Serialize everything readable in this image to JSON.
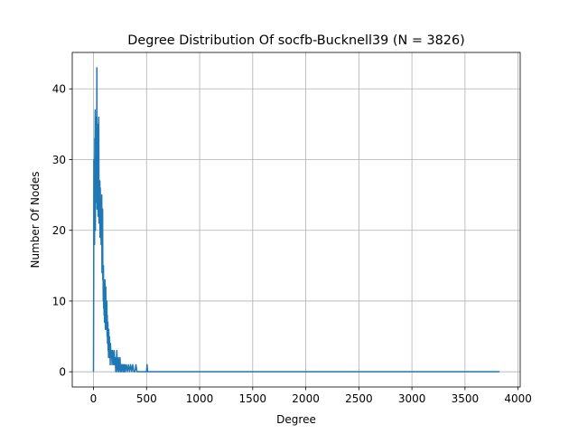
{
  "chart_data": {
    "type": "line",
    "title": "Degree Distribution Of socfb-Bucknell39 (N = 3826)",
    "xlabel": "Degree",
    "ylabel": "Number Of Nodes",
    "xlim": [
      -200,
      4020
    ],
    "ylim": [
      -2.15,
      45.15
    ],
    "xticks": [
      0,
      500,
      1000,
      1500,
      2000,
      2500,
      3000,
      3500,
      4000
    ],
    "yticks": [
      0,
      10,
      20,
      30,
      40
    ],
    "grid": true,
    "line_color": "#1f77b4",
    "series": [
      {
        "x": [
          0,
          2,
          4,
          6,
          8,
          10,
          12,
          14,
          16,
          18,
          20,
          22,
          24,
          26,
          28,
          30,
          32,
          34,
          36,
          38,
          40,
          42,
          44,
          46,
          48,
          50,
          52,
          54,
          56,
          58,
          60,
          62,
          64,
          66,
          68,
          70,
          72,
          74,
          76,
          78,
          80,
          82,
          84,
          86,
          88,
          90,
          92,
          94,
          96,
          98,
          100,
          102,
          104,
          106,
          108,
          110,
          112,
          114,
          116,
          118,
          120,
          122,
          124,
          126,
          128,
          130,
          132,
          134,
          136,
          138,
          140,
          142,
          144,
          146,
          148,
          150,
          152,
          154,
          156,
          158,
          160,
          165,
          170,
          175,
          180,
          185,
          190,
          195,
          200,
          205,
          210,
          215,
          220,
          225,
          230,
          235,
          240,
          245,
          250,
          255,
          260,
          265,
          270,
          275,
          280,
          285,
          290,
          295,
          300,
          310,
          320,
          330,
          340,
          350,
          360,
          370,
          380,
          390,
          400,
          410,
          420,
          440,
          460,
          480,
          500,
          505,
          510,
          600,
          800,
          1000,
          1500,
          2000,
          2500,
          3000,
          3500,
          3826
        ],
        "y": [
          0,
          12,
          30,
          22,
          27,
          18,
          33,
          25,
          37,
          20,
          35,
          28,
          32,
          24,
          36,
          27,
          43,
          23,
          31,
          25,
          29,
          35,
          22,
          27,
          24,
          36,
          21,
          27,
          25,
          22,
          27,
          19,
          26,
          23,
          21,
          24,
          18,
          22,
          20,
          25,
          14,
          20,
          17,
          23,
          13,
          15,
          10,
          15,
          9,
          12,
          8,
          11,
          7,
          9,
          13,
          9,
          6,
          10,
          12,
          8,
          9,
          6,
          7,
          10,
          5,
          8,
          4,
          6,
          7,
          3,
          5,
          2,
          6,
          4,
          3,
          5,
          4,
          2,
          3,
          1,
          4,
          2,
          3,
          1,
          3,
          2,
          1,
          3,
          1,
          2,
          0,
          1,
          3,
          0,
          1,
          2,
          0,
          1,
          2,
          0,
          1,
          0,
          1,
          1,
          0,
          1,
          0,
          1,
          0,
          1,
          0,
          1,
          0,
          1,
          0,
          1,
          0,
          0,
          1,
          0,
          0,
          0,
          0,
          0,
          0,
          1,
          0,
          0,
          0,
          0,
          0,
          0,
          0,
          0,
          0,
          0
        ]
      }
    ]
  }
}
